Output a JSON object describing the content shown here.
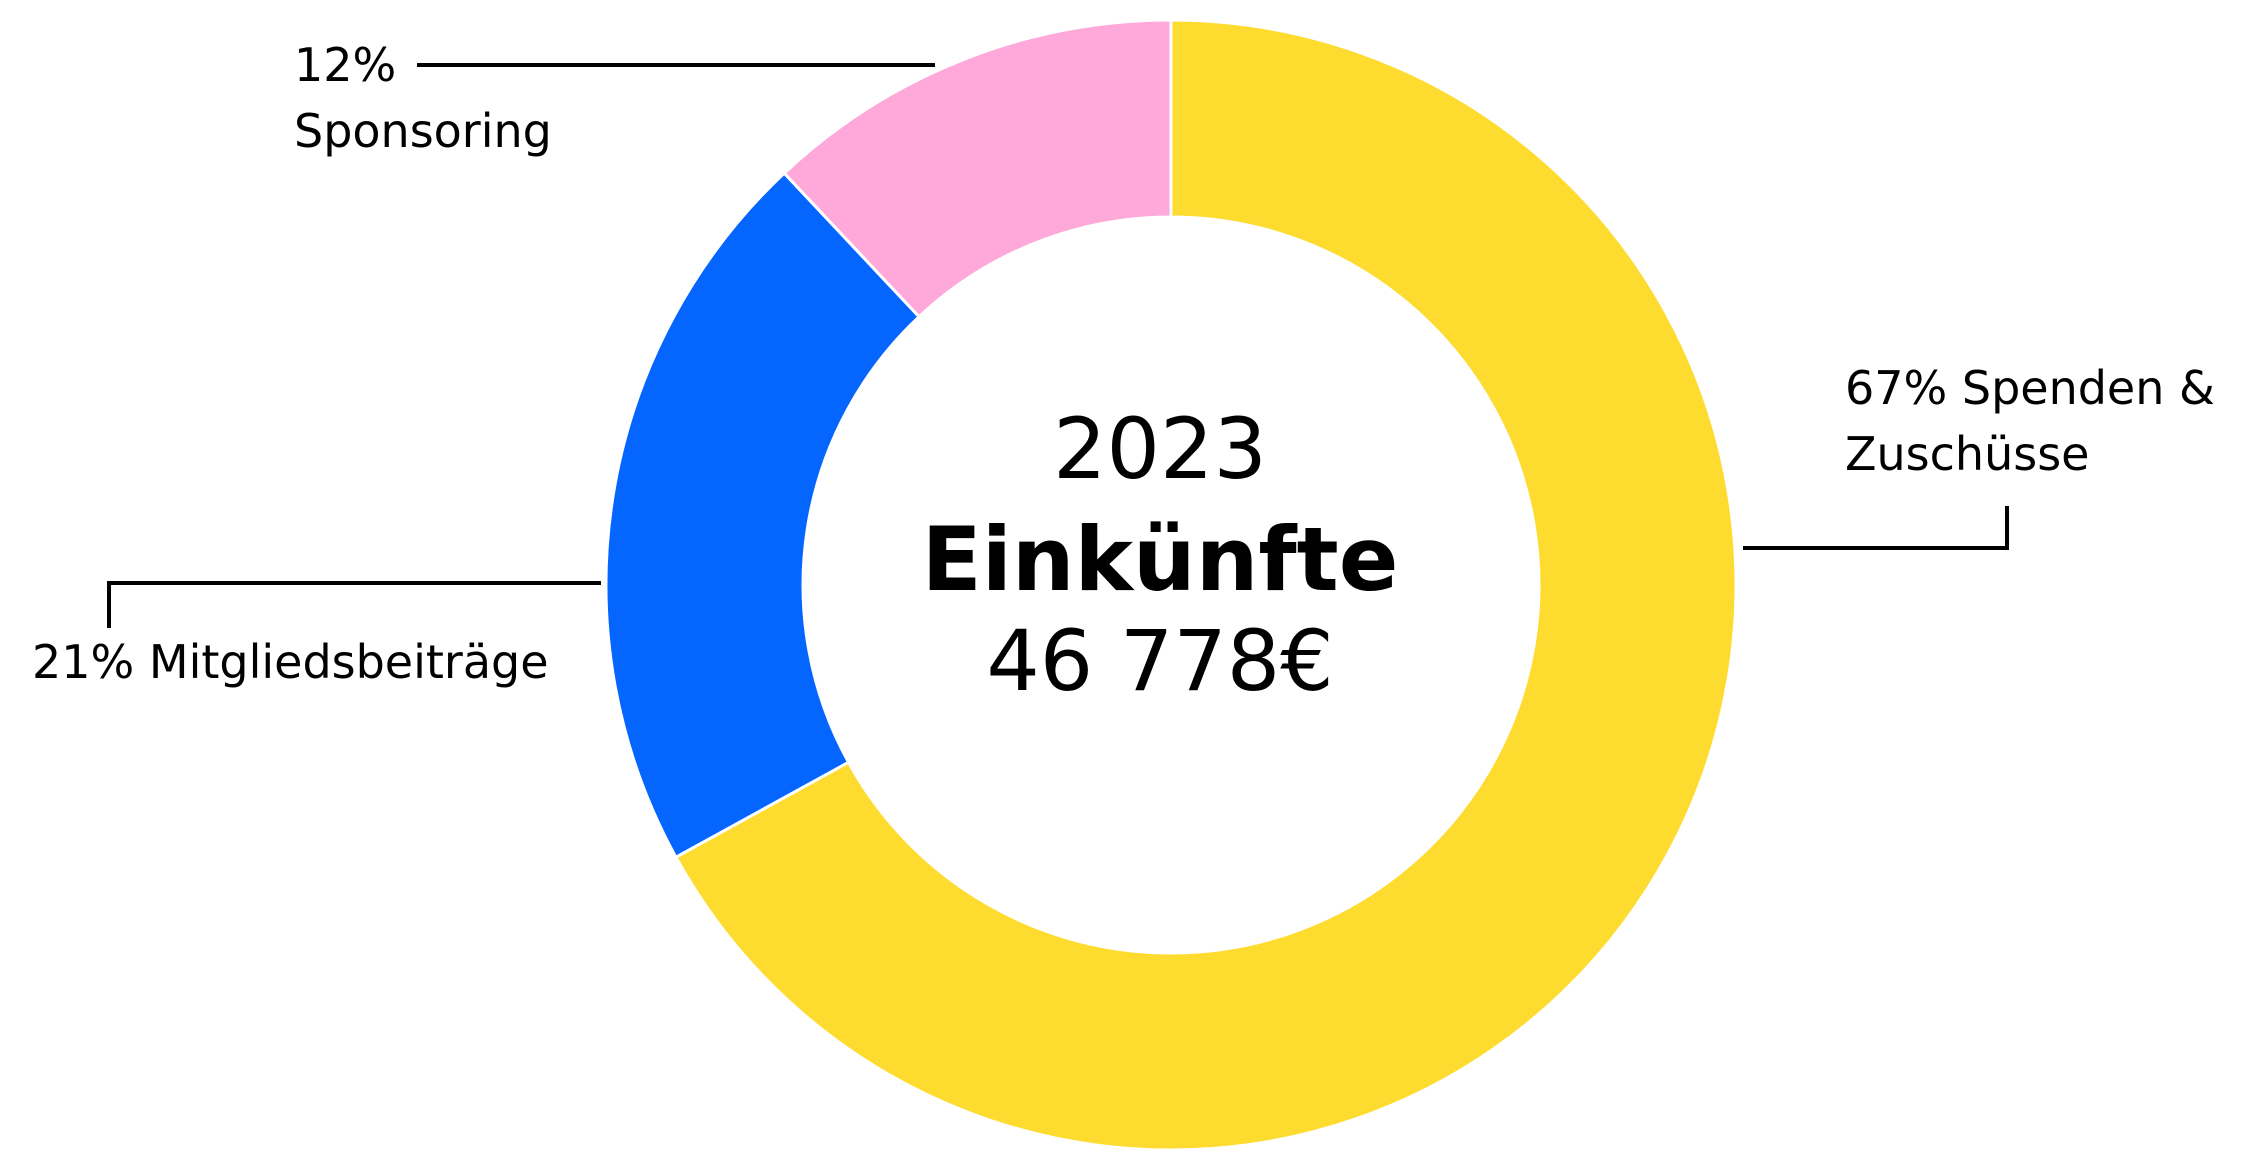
{
  "chart_data": {
    "type": "donut",
    "title": "Einkünfte",
    "subtitle": "2023",
    "total": {
      "value": 46778,
      "label": "46 778€"
    },
    "categories": [
      "Spenden & Zuschüsse",
      "Mitgliedsbeiträge",
      "Sponsoring"
    ],
    "values": [
      67,
      21,
      12
    ],
    "value_labels": [
      "67%",
      "21%",
      "12%"
    ],
    "colors": [
      "#fedb2f",
      "#0466ff",
      "#fea9da"
    ]
  }
}
